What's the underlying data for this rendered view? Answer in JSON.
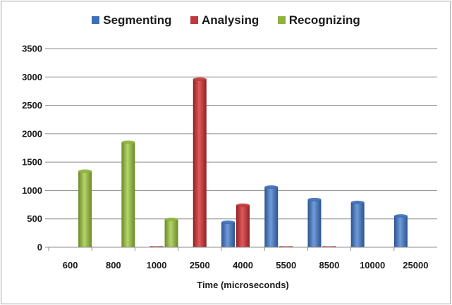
{
  "chart_data": {
    "type": "bar",
    "title": "",
    "xlabel": "Time (microseconds)",
    "ylabel": "",
    "categories": [
      "600",
      "800",
      "1000",
      "2500",
      "4000",
      "5500",
      "8500",
      "10000",
      "25000"
    ],
    "series": [
      {
        "name": "Segmenting",
        "color": "#3f6fb7",
        "values": [
          0,
          0,
          0,
          0,
          440,
          1060,
          840,
          790,
          550
        ]
      },
      {
        "name": "Analysing",
        "color": "#c0393b",
        "values": [
          0,
          0,
          10,
          2960,
          740,
          10,
          10,
          0,
          0
        ]
      },
      {
        "name": "Recognizing",
        "color": "#8fb13f",
        "values": [
          1340,
          1850,
          490,
          0,
          0,
          0,
          0,
          0,
          0
        ]
      }
    ],
    "ylim": [
      0,
      3500
    ],
    "yticks": [
      "0",
      "500",
      "1000",
      "1500",
      "2000",
      "2500",
      "3000",
      "3500"
    ],
    "grid": true,
    "legend": "top"
  }
}
